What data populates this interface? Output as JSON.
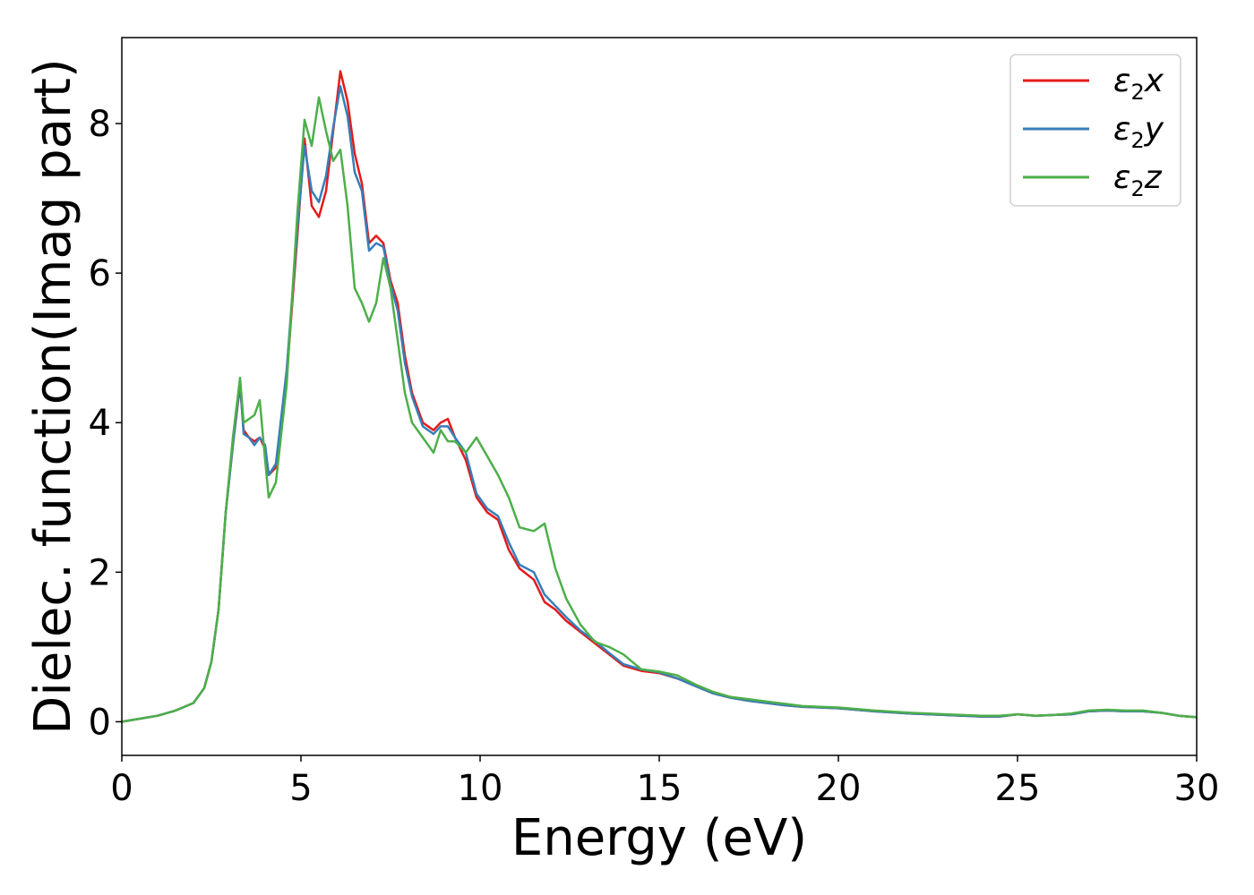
{
  "chart_data": {
    "type": "line",
    "title": "",
    "xlabel": "Energy (eV)",
    "ylabel": "Dielec. function(Imag part)",
    "xlim": [
      0,
      30
    ],
    "ylim": [
      -0.45,
      9.15
    ],
    "xticks": [
      0,
      5,
      10,
      15,
      20,
      25,
      30
    ],
    "yticks": [
      0,
      2,
      4,
      6,
      8
    ],
    "grid": false,
    "legend_position": "top-right",
    "series": [
      {
        "name": "ε₂x",
        "legend": {
          "base": "ε",
          "sub": "2",
          "tail": "x"
        },
        "color": "#e41a1c",
        "x": [
          0,
          1,
          1.5,
          2,
          2.3,
          2.5,
          2.7,
          2.9,
          3.1,
          3.3,
          3.4,
          3.55,
          3.7,
          3.85,
          4.0,
          4.1,
          4.3,
          4.6,
          4.9,
          5.1,
          5.3,
          5.5,
          5.7,
          5.9,
          6.1,
          6.3,
          6.5,
          6.7,
          6.9,
          7.1,
          7.3,
          7.5,
          7.7,
          7.9,
          8.1,
          8.4,
          8.7,
          8.9,
          9.1,
          9.3,
          9.6,
          9.9,
          10.2,
          10.5,
          10.8,
          11.1,
          11.5,
          11.8,
          12.1,
          12.4,
          12.8,
          13.2,
          13.6,
          14.0,
          14.5,
          15.0,
          15.5,
          16.0,
          16.5,
          17.0,
          17.5,
          18.0,
          18.5,
          19.0,
          19.5,
          20.0,
          21.0,
          22.0,
          23.0,
          24.0,
          24.5,
          25.0,
          25.5,
          26.0,
          26.5,
          27.0,
          27.5,
          28.0,
          28.5,
          29.0,
          29.5,
          30.0
        ],
        "y": [
          0.0,
          0.08,
          0.15,
          0.25,
          0.45,
          0.8,
          1.5,
          2.8,
          3.7,
          4.5,
          3.9,
          3.8,
          3.75,
          3.8,
          3.65,
          3.3,
          3.4,
          4.6,
          6.5,
          7.8,
          6.9,
          6.75,
          7.1,
          7.9,
          8.7,
          8.3,
          7.6,
          7.2,
          6.4,
          6.5,
          6.4,
          5.9,
          5.6,
          4.9,
          4.4,
          4.0,
          3.9,
          4.0,
          4.05,
          3.8,
          3.5,
          3.0,
          2.8,
          2.7,
          2.3,
          2.05,
          1.9,
          1.6,
          1.5,
          1.35,
          1.2,
          1.05,
          0.9,
          0.75,
          0.68,
          0.65,
          0.58,
          0.48,
          0.38,
          0.32,
          0.28,
          0.25,
          0.22,
          0.2,
          0.19,
          0.18,
          0.14,
          0.11,
          0.09,
          0.07,
          0.07,
          0.1,
          0.08,
          0.09,
          0.1,
          0.14,
          0.15,
          0.14,
          0.14,
          0.12,
          0.08,
          0.06
        ]
      },
      {
        "name": "ε₂y",
        "legend": {
          "base": "ε",
          "sub": "2",
          "tail": "y"
        },
        "color": "#377eb8",
        "x": [
          0,
          1,
          1.5,
          2,
          2.3,
          2.5,
          2.7,
          2.9,
          3.1,
          3.3,
          3.4,
          3.55,
          3.7,
          3.85,
          4.0,
          4.1,
          4.3,
          4.6,
          4.9,
          5.1,
          5.3,
          5.5,
          5.7,
          5.9,
          6.1,
          6.3,
          6.5,
          6.7,
          6.9,
          7.1,
          7.3,
          7.5,
          7.7,
          7.9,
          8.1,
          8.4,
          8.7,
          8.9,
          9.1,
          9.3,
          9.6,
          9.9,
          10.2,
          10.5,
          10.8,
          11.1,
          11.5,
          11.8,
          12.1,
          12.4,
          12.8,
          13.2,
          13.6,
          14.0,
          14.5,
          15.0,
          15.5,
          16.0,
          16.5,
          17.0,
          17.5,
          18.0,
          18.5,
          19.0,
          19.5,
          20.0,
          21.0,
          22.0,
          23.0,
          24.0,
          24.5,
          25.0,
          25.5,
          26.0,
          26.5,
          27.0,
          27.5,
          28.0,
          28.5,
          29.0,
          29.5,
          30.0
        ],
        "y": [
          0.0,
          0.08,
          0.15,
          0.25,
          0.45,
          0.8,
          1.5,
          2.8,
          3.7,
          4.55,
          3.85,
          3.8,
          3.7,
          3.8,
          3.7,
          3.3,
          3.45,
          4.7,
          6.6,
          7.7,
          7.1,
          6.95,
          7.3,
          7.95,
          8.5,
          8.1,
          7.35,
          7.1,
          6.3,
          6.4,
          6.35,
          5.85,
          5.5,
          4.8,
          4.35,
          3.95,
          3.85,
          3.95,
          3.95,
          3.8,
          3.6,
          3.05,
          2.85,
          2.75,
          2.4,
          2.1,
          2.0,
          1.7,
          1.55,
          1.4,
          1.22,
          1.08,
          0.92,
          0.77,
          0.7,
          0.66,
          0.58,
          0.48,
          0.38,
          0.32,
          0.28,
          0.25,
          0.22,
          0.2,
          0.19,
          0.18,
          0.14,
          0.11,
          0.09,
          0.07,
          0.07,
          0.1,
          0.08,
          0.09,
          0.1,
          0.14,
          0.15,
          0.14,
          0.14,
          0.12,
          0.08,
          0.06
        ]
      },
      {
        "name": "ε₂z",
        "legend": {
          "base": "ε",
          "sub": "2",
          "tail": "z"
        },
        "color": "#4daf4a",
        "x": [
          0,
          1,
          1.5,
          2,
          2.3,
          2.5,
          2.7,
          2.9,
          3.1,
          3.3,
          3.4,
          3.55,
          3.7,
          3.85,
          4.0,
          4.1,
          4.3,
          4.6,
          4.9,
          5.1,
          5.3,
          5.5,
          5.7,
          5.9,
          6.1,
          6.3,
          6.5,
          6.7,
          6.9,
          7.1,
          7.3,
          7.5,
          7.7,
          7.9,
          8.1,
          8.4,
          8.7,
          8.9,
          9.1,
          9.3,
          9.6,
          9.9,
          10.2,
          10.5,
          10.8,
          11.1,
          11.5,
          11.8,
          12.1,
          12.4,
          12.8,
          13.2,
          13.6,
          14.0,
          14.5,
          15.0,
          15.5,
          16.0,
          16.5,
          17.0,
          17.5,
          18.0,
          18.5,
          19.0,
          19.5,
          20.0,
          21.0,
          22.0,
          23.0,
          24.0,
          24.5,
          25.0,
          25.5,
          26.0,
          26.5,
          27.0,
          27.5,
          28.0,
          28.5,
          29.0,
          29.5,
          30.0
        ],
        "y": [
          0.0,
          0.08,
          0.15,
          0.25,
          0.45,
          0.8,
          1.5,
          2.8,
          3.8,
          4.6,
          4.0,
          4.05,
          4.1,
          4.3,
          3.5,
          3.0,
          3.2,
          4.5,
          6.8,
          8.05,
          7.7,
          8.35,
          7.9,
          7.5,
          7.65,
          6.9,
          5.8,
          5.6,
          5.35,
          5.6,
          6.2,
          5.8,
          5.1,
          4.4,
          4.0,
          3.8,
          3.6,
          3.9,
          3.75,
          3.75,
          3.6,
          3.8,
          3.55,
          3.3,
          3.0,
          2.6,
          2.55,
          2.65,
          2.05,
          1.65,
          1.3,
          1.07,
          1.0,
          0.9,
          0.7,
          0.67,
          0.62,
          0.5,
          0.4,
          0.33,
          0.3,
          0.27,
          0.24,
          0.21,
          0.2,
          0.19,
          0.15,
          0.12,
          0.1,
          0.08,
          0.08,
          0.1,
          0.08,
          0.09,
          0.11,
          0.15,
          0.16,
          0.15,
          0.15,
          0.12,
          0.08,
          0.06
        ]
      }
    ]
  }
}
